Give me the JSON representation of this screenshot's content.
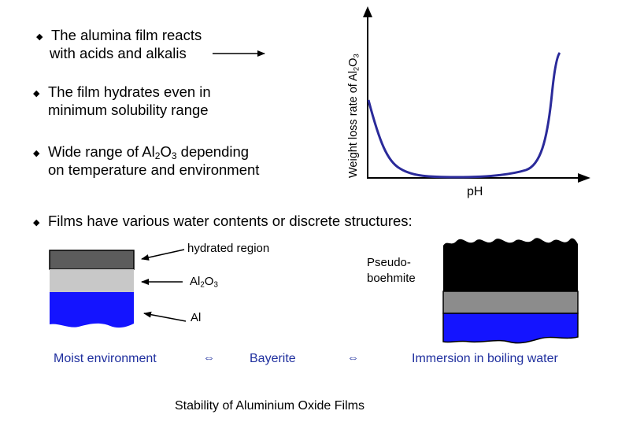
{
  "bullets": {
    "b1_line1": "The alumina film reacts",
    "b1_line2": "with acids and alkalis",
    "b2_line1": "The film hydrates even in",
    "b2_line2": "minimum solubility range",
    "b3_pre": "Wide range of Al",
    "b3_sub1": "2",
    "b3_mid": "O",
    "b3_sub2": "3",
    "b3_post": " depending",
    "b3_line2": "on temperature and environment",
    "b4": "Films have various water contents or discrete structures:",
    "symbol": "◆"
  },
  "graph": {
    "ylabel_pre": "Weight loss rate of Al",
    "ylabel_sub1": "2",
    "ylabel_mid": "O",
    "ylabel_sub2": "3",
    "xlabel": "pH",
    "curve_color": "#2a2a9a"
  },
  "left_diagram": {
    "label_hydrated": "hydrated region",
    "label_al2o3_pre": "Al",
    "label_al2o3_sub1": "2",
    "label_al2o3_mid": "O",
    "label_al2o3_sub2": "3",
    "label_al": "Al",
    "color_hydrated": "#5c5c5c",
    "color_oxide": "#c8c8c8",
    "color_metal": "#1414ff"
  },
  "right_diagram": {
    "label_line1": "Pseudo-",
    "label_line2": "boehmite",
    "color_boehmite": "#000000",
    "color_oxide": "#8c8c8c",
    "color_metal": "#1414ff"
  },
  "bottom_row": {
    "moist": "Moist environment",
    "arrow1": "⇔",
    "bayerite": "Bayerite",
    "arrow2": "⇔",
    "immersion": "Immersion in boiling water"
  },
  "caption": "Stability of Aluminium Oxide Films"
}
